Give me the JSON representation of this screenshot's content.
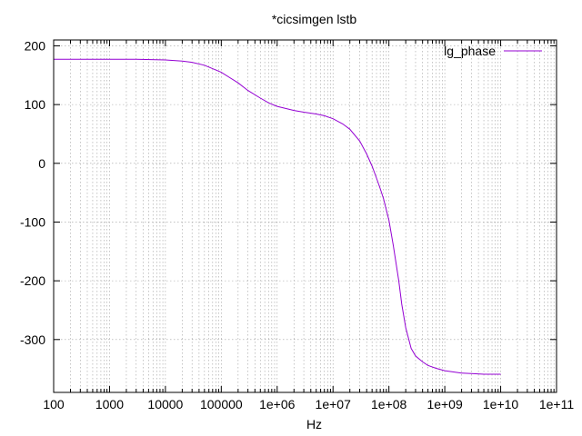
{
  "chart_data": {
    "type": "line",
    "title": "*cicsimgen lstb",
    "xlabel": "Hz",
    "ylabel": "",
    "x_scale": "log",
    "xlim": [
      100,
      100000000000
    ],
    "ylim": [
      -390,
      210
    ],
    "grid": true,
    "legend_position": "top-right",
    "x_ticks": [
      {
        "value": 100,
        "label": "100"
      },
      {
        "value": 1000,
        "label": "1000"
      },
      {
        "value": 10000,
        "label": "10000"
      },
      {
        "value": 100000,
        "label": "100000"
      },
      {
        "value": 1000000,
        "label": "1e+06"
      },
      {
        "value": 10000000,
        "label": "1e+07"
      },
      {
        "value": 100000000,
        "label": "1e+08"
      },
      {
        "value": 1000000000,
        "label": "1e+09"
      },
      {
        "value": 10000000000,
        "label": "1e+10"
      },
      {
        "value": 100000000000,
        "label": "1e+11"
      }
    ],
    "y_ticks": [
      {
        "value": 200,
        "label": "200"
      },
      {
        "value": 100,
        "label": "100"
      },
      {
        "value": 0,
        "label": "0"
      },
      {
        "value": -100,
        "label": "-100"
      },
      {
        "value": -200,
        "label": "-200"
      },
      {
        "value": -300,
        "label": "-300"
      }
    ],
    "series": [
      {
        "name": "lg_phase",
        "color": "#9400d3",
        "x": [
          100,
          1000,
          3000,
          10000,
          20000,
          30000,
          50000,
          100000,
          200000,
          300000,
          500000,
          700000,
          1000000,
          2000000,
          3000000,
          5000000,
          7000000,
          10000000,
          15000000,
          20000000,
          30000000,
          40000000,
          50000000,
          60000000,
          70000000,
          80000000,
          100000000,
          120000000,
          150000000,
          170000000,
          200000000,
          250000000,
          300000000,
          400000000,
          500000000,
          700000000,
          1000000000,
          2000000000,
          3000000000,
          5000000000,
          7000000000,
          10000000000
        ],
        "y": [
          177,
          177,
          177,
          176,
          174,
          172,
          167,
          155,
          137,
          124,
          111,
          103,
          97,
          90,
          87,
          84,
          81,
          76,
          67,
          58,
          38,
          16,
          -5,
          -25,
          -43,
          -60,
          -97,
          -140,
          -200,
          -240,
          -280,
          -315,
          -328,
          -338,
          -344,
          -349,
          -353,
          -357,
          -358,
          -359,
          -359,
          -359
        ]
      }
    ]
  }
}
